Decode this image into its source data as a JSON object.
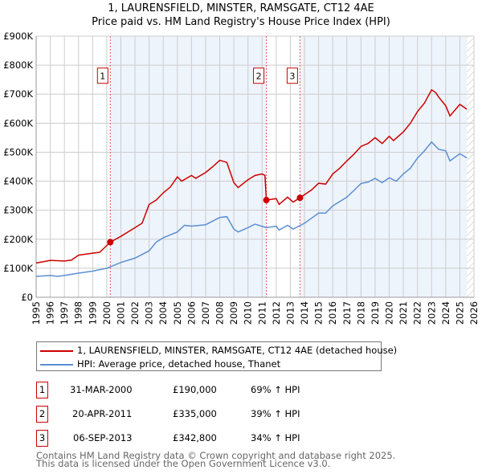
{
  "title": "1, LAURENSFIELD, MINSTER, RAMSGATE, CT12 4AE",
  "subtitle": "Price paid vs. HM Land Registry's House Price Index (HPI)",
  "legend": [
    {
      "label": "1, LAURENSFIELD, MINSTER, RAMSGATE, CT12 4AE (detached house)",
      "color": "#cc0000"
    },
    {
      "label": "HPI: Average price, detached house, Thanet",
      "color": "#5b8fd0"
    }
  ],
  "transactions": [
    {
      "n": "1",
      "date": "31-MAR-2000",
      "price": "£190,000",
      "hpi": "69% ↑ HPI",
      "x": 2000.25,
      "y": 190000
    },
    {
      "n": "2",
      "date": "20-APR-2011",
      "price": "£335,000",
      "hpi": "39% ↑ HPI",
      "x": 2011.3,
      "y": 335000
    },
    {
      "n": "3",
      "date": "06-SEP-2013",
      "price": "£342,800",
      "hpi": "34% ↑ HPI",
      "x": 2013.68,
      "y": 342800
    }
  ],
  "footer": [
    "Contains HM Land Registry data © Crown copyright and database right 2025.",
    "This data is licensed under the Open Government Licence v3.0."
  ],
  "chart_data": {
    "type": "line",
    "xlim": [
      1995,
      2026
    ],
    "ylim": [
      0,
      900000
    ],
    "yticks": [
      {
        "v": 0,
        "label": "£0"
      },
      {
        "v": 100000,
        "label": "£100K"
      },
      {
        "v": 200000,
        "label": "£200K"
      },
      {
        "v": 300000,
        "label": "£300K"
      },
      {
        "v": 400000,
        "label": "£400K"
      },
      {
        "v": 500000,
        "label": "£500K"
      },
      {
        "v": 600000,
        "label": "£600K"
      },
      {
        "v": 700000,
        "label": "£700K"
      },
      {
        "v": 800000,
        "label": "£800K"
      },
      {
        "v": 900000,
        "label": "£900K"
      }
    ],
    "xticks": [
      "1995",
      "1996",
      "1997",
      "1998",
      "1999",
      "2000",
      "2001",
      "2002",
      "2003",
      "2004",
      "2005",
      "2006",
      "2007",
      "2008",
      "2009",
      "2010",
      "2011",
      "2012",
      "2013",
      "2014",
      "2015",
      "2016",
      "2017",
      "2018",
      "2019",
      "2020",
      "2021",
      "2022",
      "2023",
      "2024",
      "2025",
      "2026"
    ],
    "data_end": 2025.5,
    "series": [
      {
        "name": "1, LAURENSFIELD, MINSTER, RAMSGATE, CT12 4AE (detached house)",
        "color": "#cc0000",
        "points": [
          [
            1995,
            118
          ],
          [
            1996,
            127
          ],
          [
            1997,
            125
          ],
          [
            1997.5,
            128
          ],
          [
            1998,
            145
          ],
          [
            1999,
            152
          ],
          [
            1999.5,
            155
          ],
          [
            2000.25,
            190
          ],
          [
            2001,
            210
          ],
          [
            2002,
            240
          ],
          [
            2002.5,
            255
          ],
          [
            2003,
            320
          ],
          [
            2003.5,
            335
          ],
          [
            2004,
            360
          ],
          [
            2004.5,
            380
          ],
          [
            2005,
            415
          ],
          [
            2005.3,
            400
          ],
          [
            2006,
            420
          ],
          [
            2006.3,
            410
          ],
          [
            2007,
            430
          ],
          [
            2007.5,
            450
          ],
          [
            2008,
            472
          ],
          [
            2008.5,
            465
          ],
          [
            2009,
            395
          ],
          [
            2009.3,
            378
          ],
          [
            2010,
            405
          ],
          [
            2010.5,
            420
          ],
          [
            2011,
            425
          ],
          [
            2011.2,
            420
          ],
          [
            2011.3,
            335
          ],
          [
            2012,
            340
          ],
          [
            2012.2,
            320
          ],
          [
            2012.8,
            345
          ],
          [
            2013.2,
            328
          ],
          [
            2013.68,
            343
          ],
          [
            2014.5,
            370
          ],
          [
            2015,
            393
          ],
          [
            2015.5,
            390
          ],
          [
            2016,
            425
          ],
          [
            2016.5,
            445
          ],
          [
            2017,
            470
          ],
          [
            2017.5,
            493
          ],
          [
            2018,
            520
          ],
          [
            2018.5,
            530
          ],
          [
            2019,
            550
          ],
          [
            2019.5,
            530
          ],
          [
            2020,
            555
          ],
          [
            2020.3,
            540
          ],
          [
            2021,
            570
          ],
          [
            2021.5,
            600
          ],
          [
            2022,
            640
          ],
          [
            2022.5,
            670
          ],
          [
            2023,
            715
          ],
          [
            2023.3,
            705
          ],
          [
            2023.5,
            690
          ],
          [
            2024,
            660
          ],
          [
            2024.3,
            625
          ],
          [
            2025,
            665
          ],
          [
            2025.5,
            648
          ]
        ]
      },
      {
        "name": "HPI: Average price, detached house, Thanet",
        "color": "#5b8fd0",
        "points": [
          [
            1995,
            72
          ],
          [
            1996,
            75
          ],
          [
            1996.5,
            72
          ],
          [
            1997,
            75
          ],
          [
            1998,
            83
          ],
          [
            1999,
            90
          ],
          [
            2000,
            100
          ],
          [
            2001,
            120
          ],
          [
            2002,
            135
          ],
          [
            2003,
            160
          ],
          [
            2003.5,
            190
          ],
          [
            2004,
            205
          ],
          [
            2005,
            225
          ],
          [
            2005.5,
            248
          ],
          [
            2006,
            245
          ],
          [
            2007,
            250
          ],
          [
            2008,
            275
          ],
          [
            2008.5,
            278
          ],
          [
            2009,
            235
          ],
          [
            2009.3,
            225
          ],
          [
            2010,
            240
          ],
          [
            2010.5,
            252
          ],
          [
            2011.3,
            240
          ],
          [
            2012,
            245
          ],
          [
            2012.2,
            232
          ],
          [
            2012.8,
            248
          ],
          [
            2013.2,
            235
          ],
          [
            2014,
            255
          ],
          [
            2015,
            290
          ],
          [
            2015.5,
            290
          ],
          [
            2016,
            315
          ],
          [
            2017,
            345
          ],
          [
            2017.5,
            368
          ],
          [
            2018,
            392
          ],
          [
            2018.5,
            397
          ],
          [
            2019,
            410
          ],
          [
            2019.5,
            395
          ],
          [
            2020,
            412
          ],
          [
            2020.5,
            400
          ],
          [
            2021,
            425
          ],
          [
            2021.5,
            445
          ],
          [
            2022,
            480
          ],
          [
            2022.5,
            505
          ],
          [
            2023,
            535
          ],
          [
            2023.5,
            510
          ],
          [
            2024,
            505
          ],
          [
            2024.3,
            470
          ],
          [
            2025,
            495
          ],
          [
            2025.5,
            480
          ]
        ]
      }
    ],
    "points_unit": "thousands GBP"
  }
}
